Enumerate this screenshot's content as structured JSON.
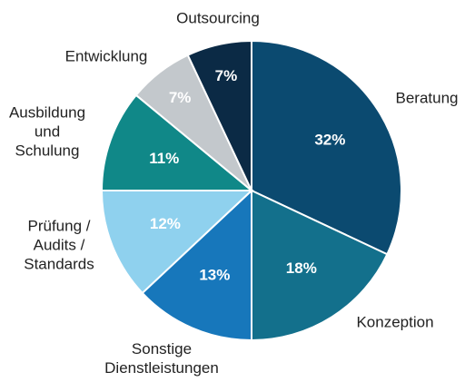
{
  "chart_data": {
    "type": "pie",
    "categories": [
      "Beratung",
      "Konzeption",
      "Sonstige Dienstleistungen",
      "Prüfung / Audits / Standards",
      "Ausbildung und Schulung",
      "Entwicklung",
      "Outsourcing"
    ],
    "values": [
      32,
      18,
      13,
      12,
      11,
      7,
      7
    ],
    "value_labels": [
      "32%",
      "18%",
      "13%",
      "12%",
      "11%",
      "7%",
      "7%"
    ],
    "colors": [
      "#0b4a70",
      "#13708c",
      "#1777bb",
      "#8fd1ee",
      "#108888",
      "#c3c8cc",
      "#0b2a45"
    ]
  }
}
